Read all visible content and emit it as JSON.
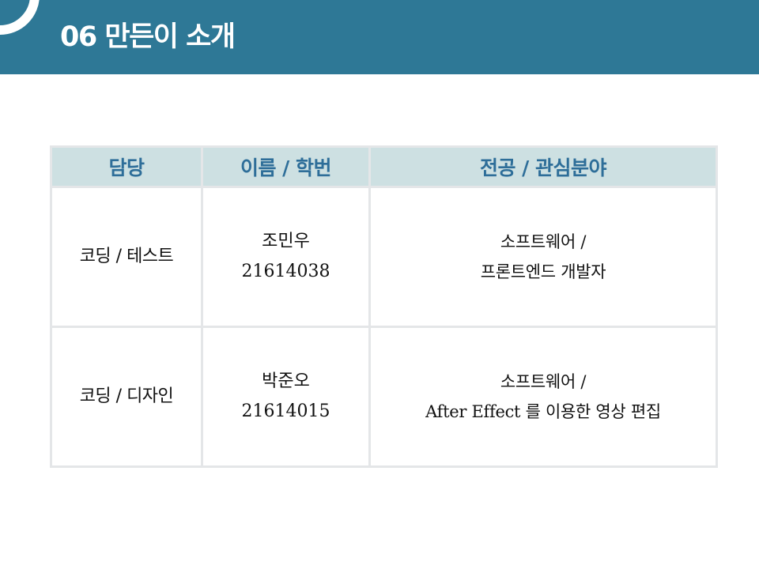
{
  "slide": {
    "title": "06 만든이 소개"
  },
  "table": {
    "headers": [
      "담당",
      "이름 / 학번",
      "전공 / 관심분야"
    ],
    "rows": [
      {
        "role": "코딩 / 테스트",
        "name": "조민우",
        "student_id": "21614038",
        "interest_line1": "소프트웨어 /",
        "interest_line2": "프론트엔드 개발자"
      },
      {
        "role": "코딩 / 디자인",
        "name": "박준오",
        "student_id": "21614015",
        "interest_line1": "소프트웨어 /",
        "interest_line2": "After Effect 를 이용한 영상 편집"
      }
    ]
  },
  "colors": {
    "header_bar": "#2e7896",
    "table_header_bg": "#cde0e2",
    "table_header_text": "#2e6e99",
    "table_border": "#e4e6e8"
  }
}
